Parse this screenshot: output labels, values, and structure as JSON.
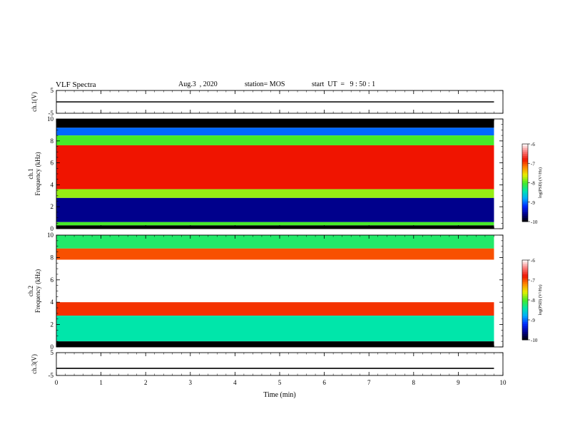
{
  "header": {
    "title": "VLF Spectra",
    "date": "Aug.3  , 2020",
    "station": "station= MOS",
    "start_time": "start  UT  =   9 : 50 : 1"
  },
  "chart_data": [
    {
      "type": "line",
      "ylabel": "ch.1(V)",
      "ylim": [
        -5,
        5
      ],
      "yticks": [
        5,
        -5
      ],
      "xlim": [
        0,
        10
      ],
      "series": [
        {
          "x": [
            0,
            9.8
          ],
          "values": [
            0,
            0
          ]
        }
      ]
    },
    {
      "type": "heatmap",
      "ylabel": "ch.1\nFrequency (kHz)",
      "ylim": [
        0,
        10
      ],
      "yticks": [
        0,
        2,
        4,
        6,
        8,
        10
      ],
      "xlim": [
        0,
        10
      ],
      "x_extent": [
        0,
        9.8
      ],
      "colorbar": {
        "label": "log(PSD) (V²/Hz)",
        "range": [
          -10,
          -6
        ],
        "ticks": [
          -6,
          -7,
          -8,
          -9,
          -10
        ]
      },
      "bands": [
        {
          "from": 9.2,
          "to": 10,
          "value": -10
        },
        {
          "from": 8.5,
          "to": 9.2,
          "value": -9
        },
        {
          "from": 7.6,
          "to": 8.5,
          "value": -8
        },
        {
          "from": 3.6,
          "to": 7.6,
          "value": -6.8
        },
        {
          "from": 2.8,
          "to": 3.6,
          "value": -7.8
        },
        {
          "from": 0.6,
          "to": 2.8,
          "value": -9.6
        },
        {
          "from": 0.3,
          "to": 0.6,
          "value": -8
        },
        {
          "from": 0,
          "to": 0.3,
          "value": -10
        }
      ]
    },
    {
      "type": "heatmap",
      "ylabel": "ch.2\nFrequency (kHz)",
      "ylim": [
        0,
        10
      ],
      "yticks": [
        0,
        2,
        4,
        6,
        8,
        10
      ],
      "xlim": [
        0,
        10
      ],
      "x_extent": [
        0,
        9.8
      ],
      "colorbar": {
        "label": "log(PSD) (V²/Hz)",
        "range": [
          -10,
          -6
        ],
        "ticks": [
          -6,
          -7,
          -8,
          -9,
          -10
        ]
      },
      "bands": [
        {
          "from": 8.8,
          "to": 10,
          "value": -8.2
        },
        {
          "from": 7.8,
          "to": 8.8,
          "value": -7
        },
        {
          "from": 4.0,
          "to": 7.8,
          "value": -6
        },
        {
          "from": 2.8,
          "to": 4.0,
          "value": -6.9
        },
        {
          "from": 0.5,
          "to": 2.8,
          "value": -8.4
        },
        {
          "from": 0,
          "to": 0.5,
          "value": -10
        }
      ]
    },
    {
      "type": "line",
      "ylabel": "ch.3(V)",
      "ylim": [
        -5,
        5
      ],
      "yticks": [
        5,
        -5
      ],
      "xlim": [
        0,
        10
      ],
      "series": [
        {
          "x": [
            0,
            9.8
          ],
          "values": [
            -1.9,
            -1.9
          ]
        }
      ]
    }
  ],
  "x_axis": {
    "label": "Time  (min)",
    "ticks": [
      0,
      1,
      2,
      3,
      4,
      5,
      6,
      7,
      8,
      9,
      10
    ]
  }
}
